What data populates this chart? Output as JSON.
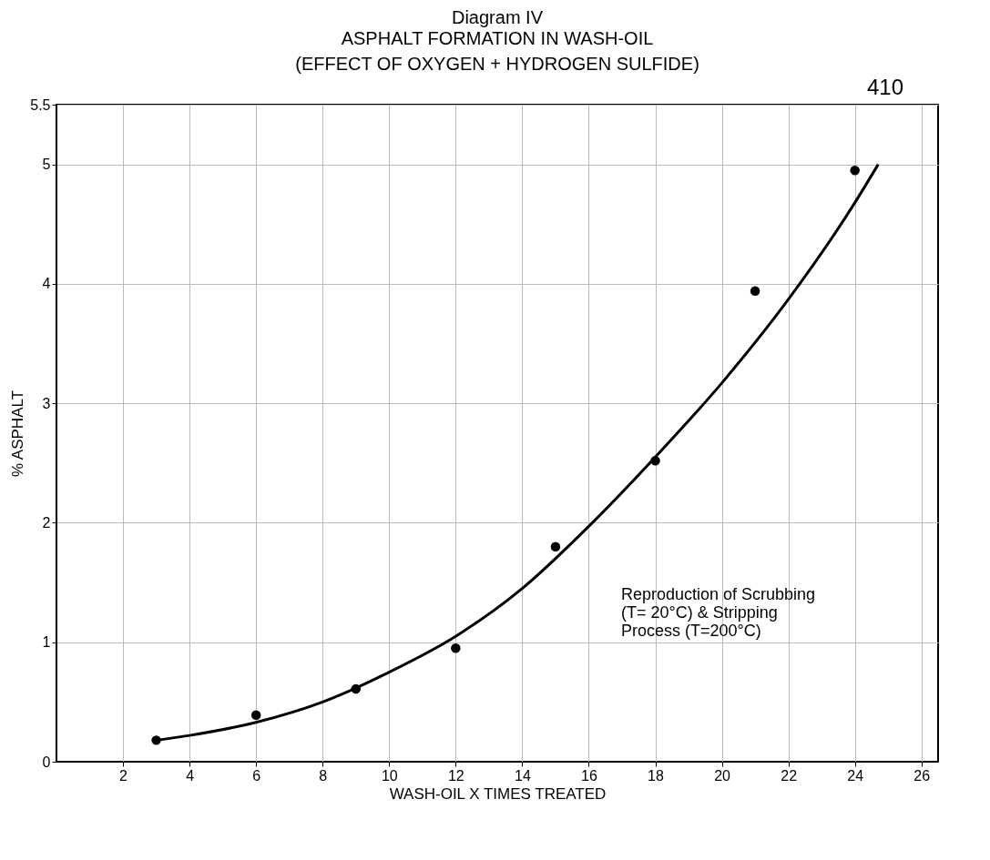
{
  "chart_data": {
    "type": "scatter",
    "title": "Diagram IV",
    "subtitle": "ASPHALT FORMATION IN WASH-OIL\n(EFFECT OF OXYGEN + HYDROGEN SULFIDE)",
    "xlabel": "WASH-OIL X TIMES TREATED",
    "ylabel": "% ASPHALT",
    "annotations": [
      "410",
      "Reproduction of Scrubbing\n(T= 20°C) & Stripping\nProcess (T=200°C)"
    ],
    "series": [
      {
        "color": "#000000",
        "marker": "circle",
        "x": [
          3,
          6,
          9,
          12,
          15,
          18,
          21,
          24
        ],
        "values": [
          0.18,
          0.39,
          0.61,
          0.95,
          1.8,
          2.52,
          3.94,
          4.95
        ]
      },
      {
        "type": "line",
        "color": "#000000",
        "line_style": "solid",
        "x": [
          3,
          4,
          6,
          8,
          10,
          12,
          14,
          16,
          18,
          20,
          22,
          24,
          24.7
        ],
        "values": [
          0.18,
          0.22,
          0.33,
          0.5,
          0.75,
          1.05,
          1.45,
          1.97,
          2.55,
          3.17,
          3.87,
          4.68,
          5.0
        ]
      }
    ],
    "xlim": [
      0,
      26.5
    ],
    "xticks": [
      2,
      4,
      6,
      8,
      10,
      12,
      14,
      16,
      18,
      20,
      22,
      24,
      26
    ],
    "ylim": [
      0,
      5.5
    ],
    "yticks": [
      0,
      1,
      2,
      3,
      4,
      5,
      5.5
    ],
    "grid": true
  }
}
